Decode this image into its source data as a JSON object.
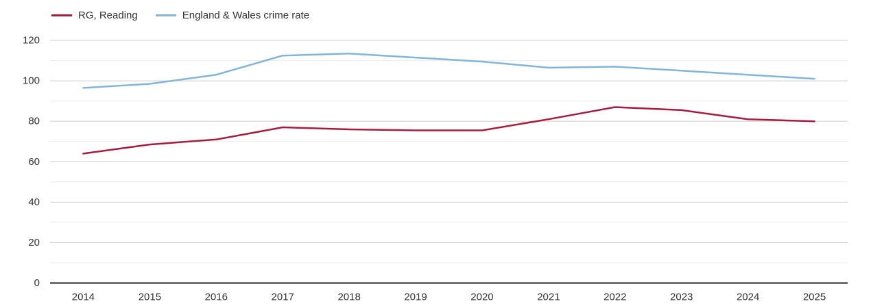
{
  "legend": {
    "items": [
      {
        "label": "RG, Reading",
        "color": "#a51c3c"
      },
      {
        "label": "England & Wales crime rate",
        "color": "#83b5d9"
      }
    ]
  },
  "chart_data": {
    "type": "line",
    "x": [
      "2014",
      "2015",
      "2016",
      "2017",
      "2018",
      "2019",
      "2020",
      "2021",
      "2022",
      "2023",
      "2024",
      "2025"
    ],
    "series": [
      {
        "name": "RG, Reading",
        "color": "#a51c3c",
        "values": [
          64,
          68.5,
          71,
          77,
          76,
          75.5,
          75.5,
          81,
          87,
          85.5,
          81,
          80
        ]
      },
      {
        "name": "England & Wales crime rate",
        "color": "#83b5d9",
        "values": [
          96.5,
          98.5,
          103,
          112.5,
          113.5,
          111.5,
          109.5,
          106.5,
          107,
          105,
          103,
          101
        ]
      }
    ],
    "title": "",
    "xlabel": "",
    "ylabel": "",
    "ylim": [
      0,
      120
    ],
    "y_major_ticks": [
      0,
      20,
      40,
      60,
      80,
      100,
      120
    ],
    "y_minor_ticks": [
      10,
      30,
      50,
      70,
      90,
      110
    ],
    "grid": "on",
    "legend_position": "top-left",
    "colors": {
      "grid_major": "#cccccc",
      "grid_minor": "#ececec",
      "axis": "#222222",
      "tick_text": "#333333",
      "background": "#ffffff"
    }
  }
}
